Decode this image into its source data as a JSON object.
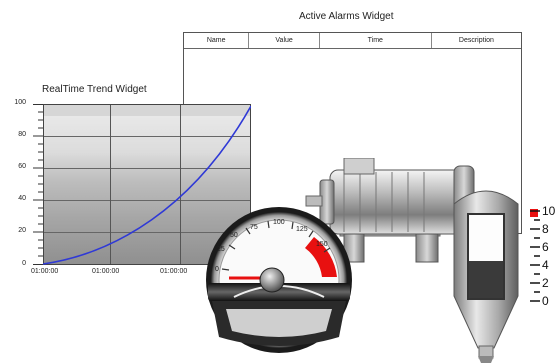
{
  "alarms": {
    "title": "Active Alarms Widget",
    "columns": [
      "Name",
      "Value",
      "Time",
      "Description"
    ]
  },
  "trend": {
    "title": "RealTime Trend Widget",
    "y_ticks": [
      "100",
      "80",
      "60",
      "40",
      "20",
      "0"
    ],
    "x_ticks": [
      "01:00:00",
      "01:00:00",
      "01:00:00"
    ],
    "line_color": "#2f39d6"
  },
  "gauge": {
    "ticks": [
      "0",
      "25",
      "50",
      "75",
      "100",
      "125",
      "150"
    ],
    "value": 0,
    "alarm_color": "#e81010"
  },
  "tank": {
    "scale": [
      "10",
      "8",
      "6",
      "4",
      "2",
      "0"
    ],
    "level_fraction": 0.45,
    "alarm_color": "#e81010"
  }
}
